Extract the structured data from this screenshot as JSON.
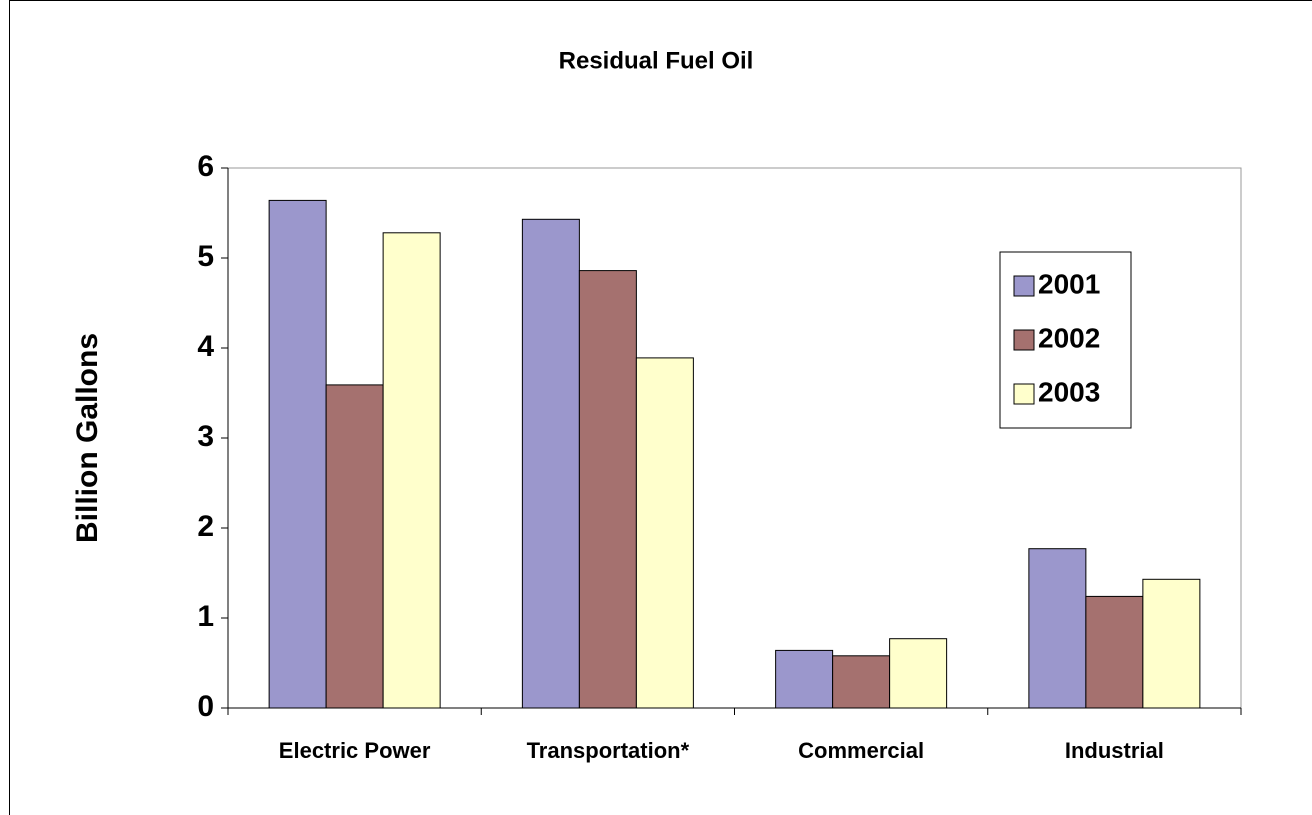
{
  "chart_data": {
    "type": "bar",
    "title": "Residual Fuel Oil",
    "ylabel": "Billion Gallons",
    "categories": [
      "Electric Power",
      "Transportation*",
      "Commercial",
      "Industrial"
    ],
    "series": [
      {
        "name": "2001",
        "color": "#9b97cc",
        "values": [
          5.64,
          5.43,
          0.64,
          1.77
        ]
      },
      {
        "name": "2002",
        "color": "#a5716f",
        "values": [
          3.59,
          4.86,
          0.58,
          1.24
        ]
      },
      {
        "name": "2003",
        "color": "#ffffcc",
        "values": [
          5.28,
          3.89,
          0.77,
          1.43
        ]
      }
    ],
    "ylim": [
      0,
      6
    ],
    "yticks": [
      0,
      1,
      2,
      3,
      4,
      5,
      6
    ],
    "legend": "upper right"
  }
}
